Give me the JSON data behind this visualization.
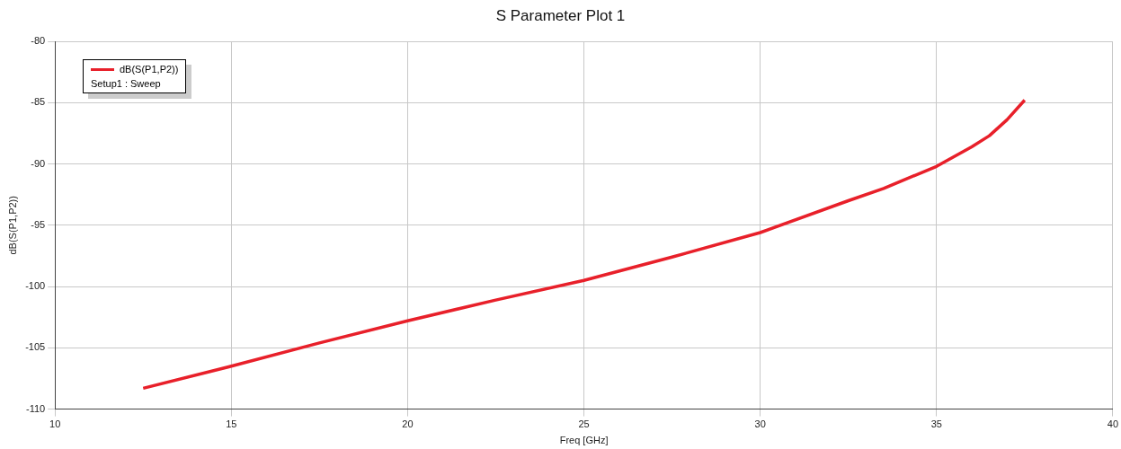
{
  "chart_data": {
    "type": "line",
    "title": "S Parameter Plot 1",
    "xlabel": "Freq [GHz]",
    "ylabel": "dB(S(P1,P2))",
    "x": [
      12.5,
      15,
      17.5,
      20,
      22.5,
      25,
      27.5,
      30,
      32.5,
      33.5,
      34,
      35,
      36,
      36.5,
      37,
      37.5
    ],
    "series": [
      {
        "name": "dB(S(P1,P2))",
        "color": "#e8202a",
        "values": [
          -108.3,
          -106.5,
          -104.6,
          -102.8,
          -101.1,
          -99.5,
          -97.6,
          -95.6,
          -93.0,
          -92.0,
          -91.4,
          -90.2,
          -88.6,
          -87.7,
          -86.4,
          -84.8
        ]
      }
    ],
    "annotations": [
      "Setup1 : Sweep"
    ],
    "xlim": [
      10,
      40
    ],
    "xticks": [
      10,
      15,
      20,
      25,
      30,
      35,
      40
    ],
    "ylim": [
      -110,
      -80
    ],
    "yticks": [
      -110,
      -105,
      -100,
      -95,
      -90,
      -85,
      -80
    ],
    "grid": true,
    "legend": "top left",
    "marker": "none",
    "line_style": "solid"
  }
}
